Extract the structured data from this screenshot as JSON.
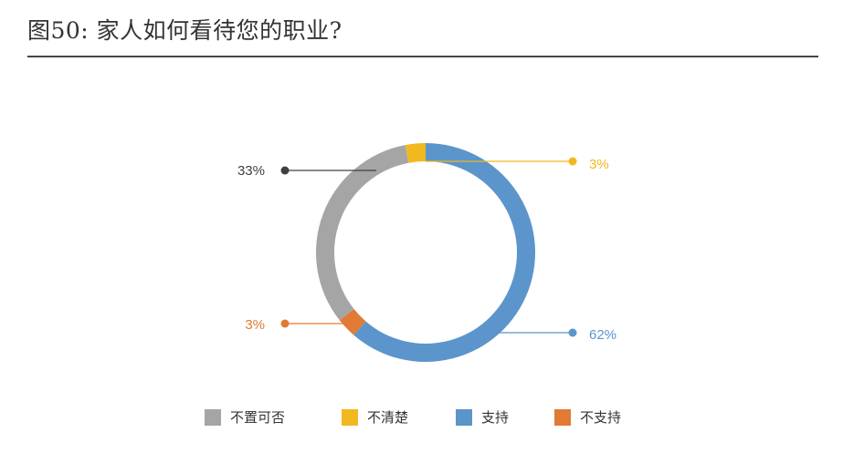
{
  "header": {
    "title": "图50: 家人如何看待您的职业?"
  },
  "chart_data": {
    "type": "pie",
    "donut": true,
    "categories": [
      "不置可否",
      "不清楚",
      "支持",
      "不支持"
    ],
    "values": [
      33,
      3,
      62,
      3
    ],
    "labels": [
      "33%",
      "3%",
      "62%",
      "3%"
    ],
    "colors": [
      "#a5a5a5",
      "#f2b81f",
      "#5b95cb",
      "#e07a35"
    ],
    "legend_position": "bottom"
  }
}
